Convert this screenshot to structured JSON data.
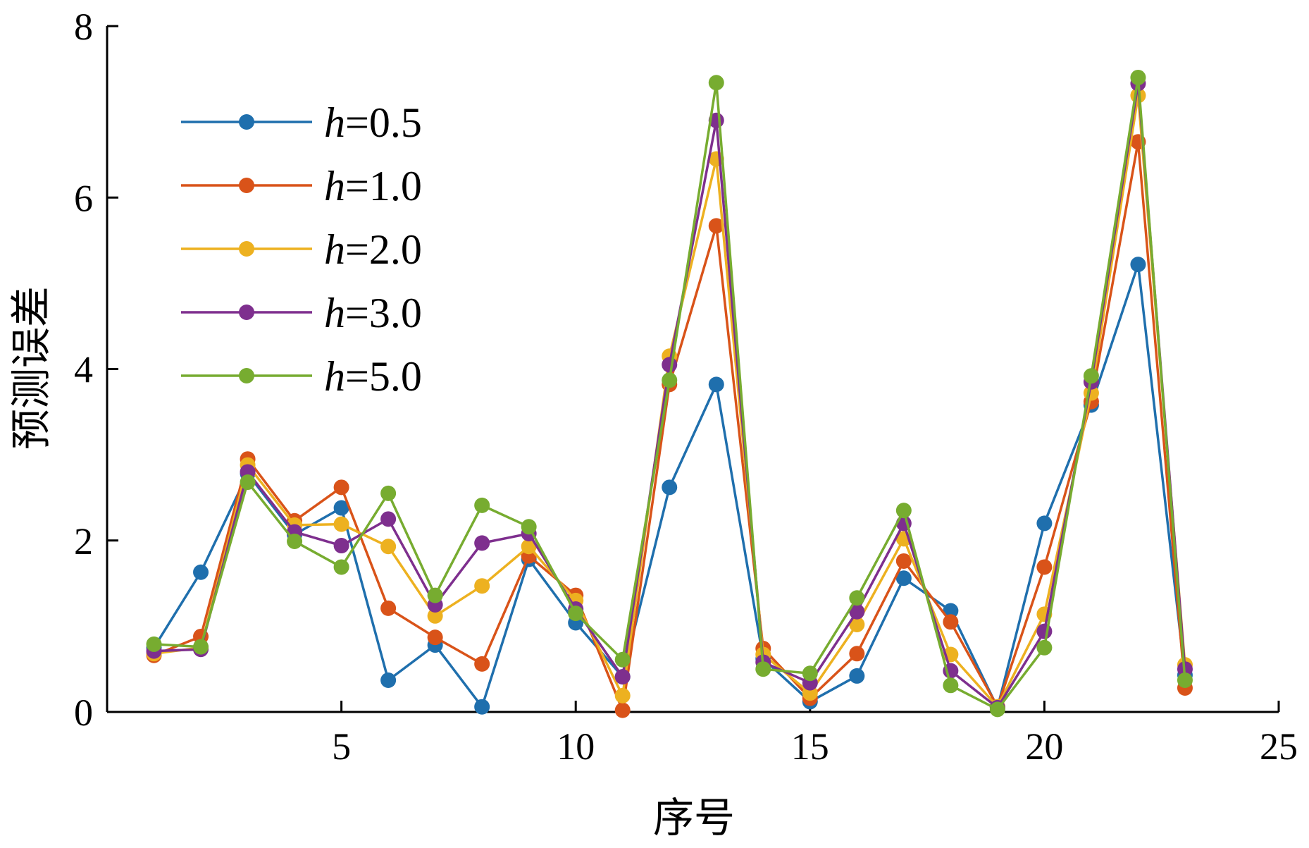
{
  "chart_data": {
    "type": "line",
    "xlabel": "序号",
    "ylabel": "预测误差",
    "xlim": [
      0,
      25
    ],
    "ylim": [
      0,
      8
    ],
    "xticks": [
      5,
      10,
      15,
      20,
      25
    ],
    "yticks": [
      0,
      2,
      4,
      6,
      8
    ],
    "grid": false,
    "legend_position": "top-left",
    "x": [
      1,
      2,
      3,
      4,
      5,
      6,
      7,
      8,
      9,
      10,
      11,
      12,
      13,
      14,
      15,
      16,
      17,
      18,
      19,
      20,
      21,
      22,
      23
    ],
    "series": [
      {
        "name_prefix": "h",
        "name_suffix": "=0.5",
        "color": "#1f6fad",
        "values": [
          0.75,
          1.63,
          2.78,
          2.07,
          2.38,
          0.37,
          0.78,
          0.06,
          1.78,
          1.04,
          0.41,
          2.62,
          3.82,
          0.62,
          0.12,
          0.42,
          1.56,
          1.18,
          0.05,
          2.2,
          3.58,
          5.22,
          0.43
        ]
      },
      {
        "name_prefix": "h",
        "name_suffix": "=1.0",
        "color": "#d95319",
        "values": [
          0.66,
          0.88,
          2.95,
          2.23,
          2.62,
          1.21,
          0.87,
          0.56,
          1.82,
          1.36,
          0.02,
          3.82,
          5.67,
          0.74,
          0.16,
          0.68,
          1.76,
          1.05,
          0.06,
          1.69,
          3.62,
          6.65,
          0.28
        ]
      },
      {
        "name_prefix": "h",
        "name_suffix": "=2.0",
        "color": "#edb120",
        "values": [
          0.68,
          0.75,
          2.88,
          2.18,
          2.19,
          1.93,
          1.12,
          1.47,
          1.93,
          1.3,
          0.19,
          4.15,
          6.45,
          0.67,
          0.22,
          1.02,
          2.02,
          0.67,
          0.06,
          1.14,
          3.72,
          7.19,
          0.55
        ]
      },
      {
        "name_prefix": "h",
        "name_suffix": "=3.0",
        "color": "#7e2f8e",
        "values": [
          0.71,
          0.73,
          2.8,
          2.1,
          1.94,
          2.25,
          1.25,
          1.97,
          2.08,
          1.2,
          0.41,
          4.05,
          6.9,
          0.58,
          0.34,
          1.17,
          2.2,
          0.48,
          0.05,
          0.94,
          3.85,
          7.33,
          0.5
        ]
      },
      {
        "name_prefix": "h",
        "name_suffix": "=5.0",
        "color": "#77ac30",
        "values": [
          0.79,
          0.76,
          2.68,
          1.99,
          1.69,
          2.55,
          1.36,
          2.41,
          2.16,
          1.15,
          0.61,
          3.87,
          7.34,
          0.5,
          0.45,
          1.33,
          2.35,
          0.31,
          0.03,
          0.75,
          3.92,
          7.4,
          0.37
        ]
      }
    ]
  }
}
